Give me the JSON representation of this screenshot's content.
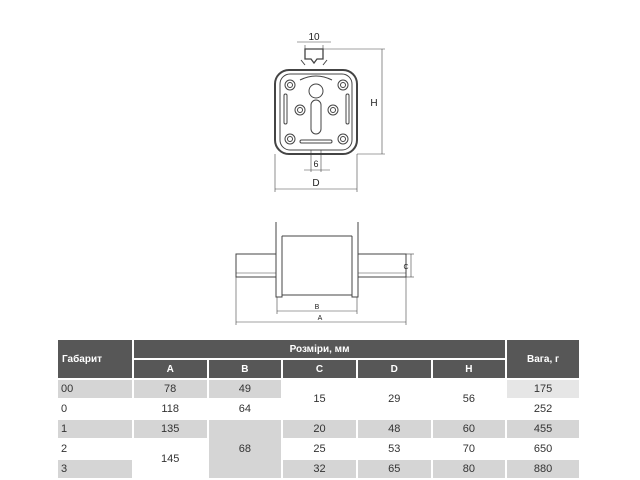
{
  "drawing": {
    "dim_tab_width": "10",
    "dim_slot_width": "6",
    "dim_H": "H",
    "dim_D": "D",
    "dim_C": "C",
    "dim_B": "B",
    "dim_A": "A"
  },
  "table": {
    "header_size": "Габарит",
    "header_dimensions": "Розміри, мм",
    "header_weight": "Вага, г",
    "columns": [
      "A",
      "B",
      "C",
      "D",
      "H"
    ],
    "rows": [
      {
        "size": "00",
        "A": "78",
        "B": "49",
        "C": "15",
        "D": "29",
        "H": "56",
        "weight": "175"
      },
      {
        "size": "0",
        "A": "118",
        "B": "64",
        "weight": "252"
      },
      {
        "size": "1",
        "A": "135",
        "B": "68",
        "C": "20",
        "D": "48",
        "H": "60",
        "weight": "455"
      },
      {
        "size": "2",
        "A": "145",
        "C": "25",
        "D": "53",
        "H": "70",
        "weight": "650"
      },
      {
        "size": "3",
        "C": "32",
        "D": "65",
        "H": "80",
        "weight": "880"
      }
    ]
  }
}
